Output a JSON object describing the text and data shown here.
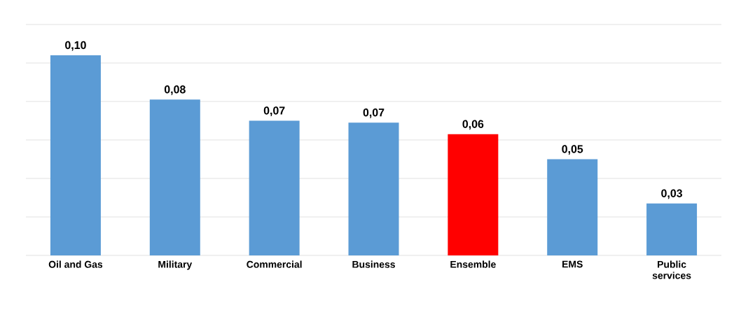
{
  "chart_data": {
    "type": "bar",
    "categories": [
      "Oil and Gas",
      "Military",
      "Commercial",
      "Business",
      "Ensemble",
      "EMS",
      "Public services"
    ],
    "values": [
      0.104,
      0.081,
      0.07,
      0.069,
      0.063,
      0.05,
      0.027
    ],
    "value_labels": [
      "0,10",
      "0,08",
      "0,07",
      "0,07",
      "0,06",
      "0,05",
      "0,03"
    ],
    "colors": [
      "#5b9bd5",
      "#5b9bd5",
      "#5b9bd5",
      "#5b9bd5",
      "#ff0000",
      "#5b9bd5",
      "#5b9bd5"
    ],
    "ylim": [
      0,
      0.12
    ],
    "yticks": [
      {
        "value": 0,
        "label": null
      },
      {
        "value": 0.02,
        "label": null
      },
      {
        "value": 0.04,
        "label": null
      },
      {
        "value": 0.06,
        "label": null
      },
      {
        "value": 0.08,
        "label": null
      },
      {
        "value": 0.1,
        "label": null
      },
      {
        "value": 0.12,
        "label": null
      }
    ],
    "grid": "y",
    "tick_labels": "x"
  }
}
